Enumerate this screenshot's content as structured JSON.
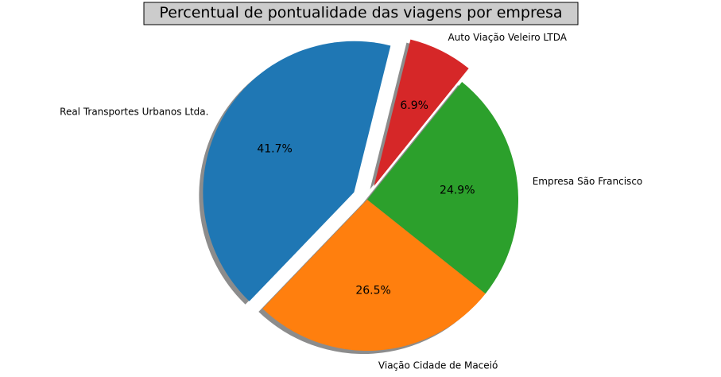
{
  "chart_data": {
    "type": "pie",
    "title": "Percentual de pontualidade das viagens por empresa",
    "categories": [
      "Real Transportes Urbanos Ltda.",
      "Viação Cidade de Maceió",
      "Empresa São Francisco",
      "Auto Viação Veleiro LTDA"
    ],
    "values": [
      41.7,
      26.5,
      24.9,
      6.9
    ],
    "percent_labels": [
      "41.7%",
      "26.5%",
      "24.9%",
      "6.9%"
    ],
    "colors": [
      "#1f77b4",
      "#ff7f0e",
      "#2ca02c",
      "#d62728"
    ],
    "exploded": [
      true,
      false,
      false,
      true
    ],
    "shadow": true,
    "start_angle_deg": 76,
    "counterclock": true
  }
}
